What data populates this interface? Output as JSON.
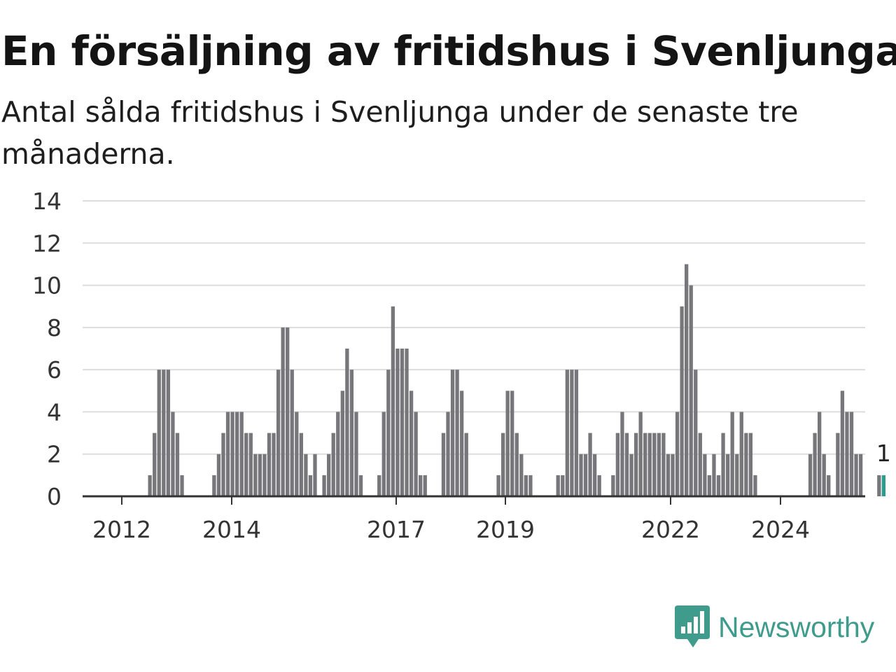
{
  "title": "En försäljning av fritidshus i Svenljunga",
  "subtitle": "Antal sålda fritidshus i Svenljunga under de senaste tre månaderna.",
  "brand": {
    "name": "Newsworthy",
    "icon": "newsworthy-logo-icon",
    "color": "#3f9c8d"
  },
  "chart_data": {
    "type": "bar",
    "ylim": [
      0,
      14
    ],
    "yticks": [
      "0",
      "2",
      "4",
      "6",
      "8",
      "10",
      "12",
      "14"
    ],
    "xticks": [
      "2012",
      "2014",
      "2017",
      "2019",
      "2022",
      "2024"
    ],
    "grid": true,
    "colors": {
      "bar": "#77777b",
      "highlight": "#2a9d8f",
      "grid": "#dddddd",
      "axis": "#333333"
    },
    "values": [
      0,
      0,
      0,
      0,
      0,
      0,
      0,
      0,
      0,
      0,
      1,
      3,
      6,
      6,
      6,
      4,
      3,
      1,
      0,
      0,
      0,
      0,
      0,
      0,
      1,
      2,
      3,
      4,
      4,
      4,
      4,
      3,
      3,
      2,
      2,
      2,
      3,
      3,
      6,
      8,
      8,
      6,
      4,
      3,
      2,
      1,
      2,
      0,
      1,
      2,
      3,
      4,
      5,
      7,
      6,
      4,
      1,
      0,
      0,
      0,
      1,
      4,
      6,
      9,
      7,
      7,
      7,
      5,
      4,
      1,
      1,
      0,
      0,
      0,
      3,
      4,
      6,
      6,
      5,
      3,
      0,
      0,
      0,
      0,
      0,
      0,
      1,
      3,
      5,
      5,
      3,
      2,
      1,
      1,
      0,
      0,
      0,
      0,
      0,
      1,
      1,
      6,
      6,
      6,
      2,
      2,
      3,
      2,
      1,
      0,
      0,
      1,
      3,
      4,
      3,
      2,
      3,
      4,
      3,
      3,
      3,
      3,
      3,
      2,
      2,
      4,
      9,
      11,
      10,
      6,
      3,
      2,
      1,
      2,
      1,
      3,
      2,
      4,
      2,
      4,
      3,
      3,
      1,
      0,
      0,
      0,
      0,
      0,
      0,
      0,
      0,
      0,
      0,
      0,
      2,
      3,
      4,
      2,
      1,
      0,
      3,
      5,
      4,
      4,
      2,
      2,
      0,
      0,
      0,
      1,
      1
    ],
    "highlight_value": 1,
    "highlight_label": "1"
  }
}
